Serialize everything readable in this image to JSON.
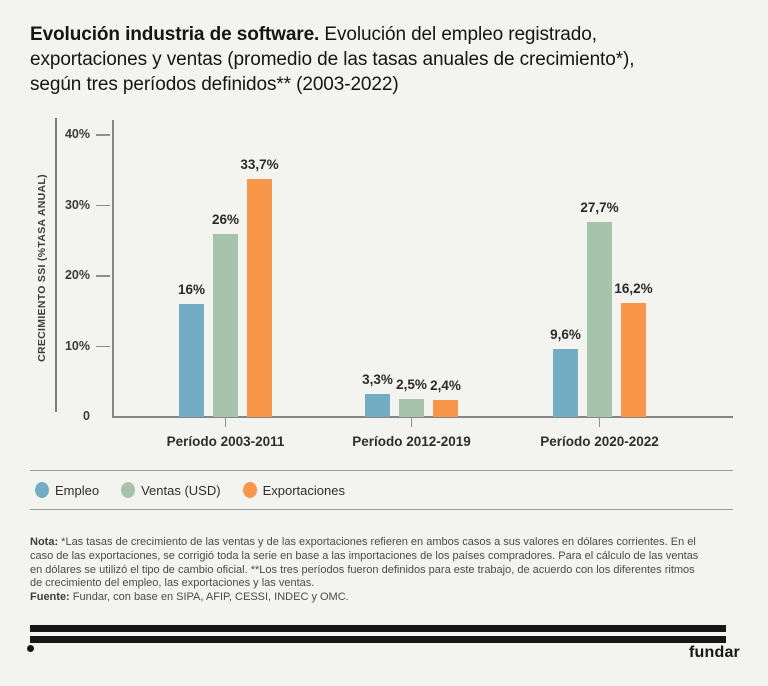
{
  "header": {
    "title_bold": "Evolución industria de software.",
    "title_rest": " Evolución del empleo registrado,\nexportaciones y ventas (promedio de las tasas anuales de crecimiento*),\nsegún tres períodos definidos** (2003-2022)"
  },
  "chart_data": {
    "type": "bar",
    "title": "Evolución industria de software. Evolución del empleo registrado, exportaciones y ventas (promedio de las tasas anuales de crecimiento*), según tres períodos definidos** (2003-2022)",
    "xlabel": "",
    "ylabel": "CRECIMIENTO SSI (%TASA ANUAL)",
    "ylim": [
      0,
      40
    ],
    "grid": false,
    "legend_position": "bottom",
    "yticks": [
      {
        "value": 0,
        "label": "0"
      },
      {
        "value": 10,
        "label": "10%"
      },
      {
        "value": 20,
        "label": "20%"
      },
      {
        "value": 30,
        "label": "30%"
      },
      {
        "value": 40,
        "label": "40%"
      }
    ],
    "categories": [
      "Período 2003-2011",
      "Período 2012-2019",
      "Período 2020-2022"
    ],
    "series": [
      {
        "name": "Empleo",
        "color": "#72adc4",
        "values": [
          16,
          3.3,
          9.6
        ],
        "value_labels": [
          "16%",
          "3,3%",
          "9,6%"
        ]
      },
      {
        "name": "Ventas (USD)",
        "color": "#a6c3ac",
        "values": [
          26,
          2.5,
          27.7
        ],
        "value_labels": [
          "26%",
          "2,5%",
          "27,7%"
        ]
      },
      {
        "name": "Exportaciones",
        "color": "#f8964a",
        "values": [
          33.7,
          2.4,
          16.2
        ],
        "value_labels": [
          "33,7%",
          "2,4%",
          "16,2%"
        ]
      }
    ]
  },
  "note": {
    "nota_label": "Nota:",
    "nota_text": " *Las tasas de crecimiento de las ventas y de las exportaciones refieren en ambos casos a sus valores en dólares corrientes. En el\ncaso de las exportaciones, se corrigió toda la serie en base a las importaciones de los países compradores. Para el cálculo de las ventas\nen dólares se utilizó el tipo de cambio oficial. **Los tres períodos fueron definidos para este trabajo, de acuerdo con los diferentes ritmos\nde crecimiento del empleo, las exportaciones y las ventas.",
    "fuente_label": "Fuente:",
    "fuente_text": " Fundar, con base en SIPA, AFIP, CESSI, INDEC y OMC."
  },
  "footer": {
    "logo_text": "fundar"
  }
}
